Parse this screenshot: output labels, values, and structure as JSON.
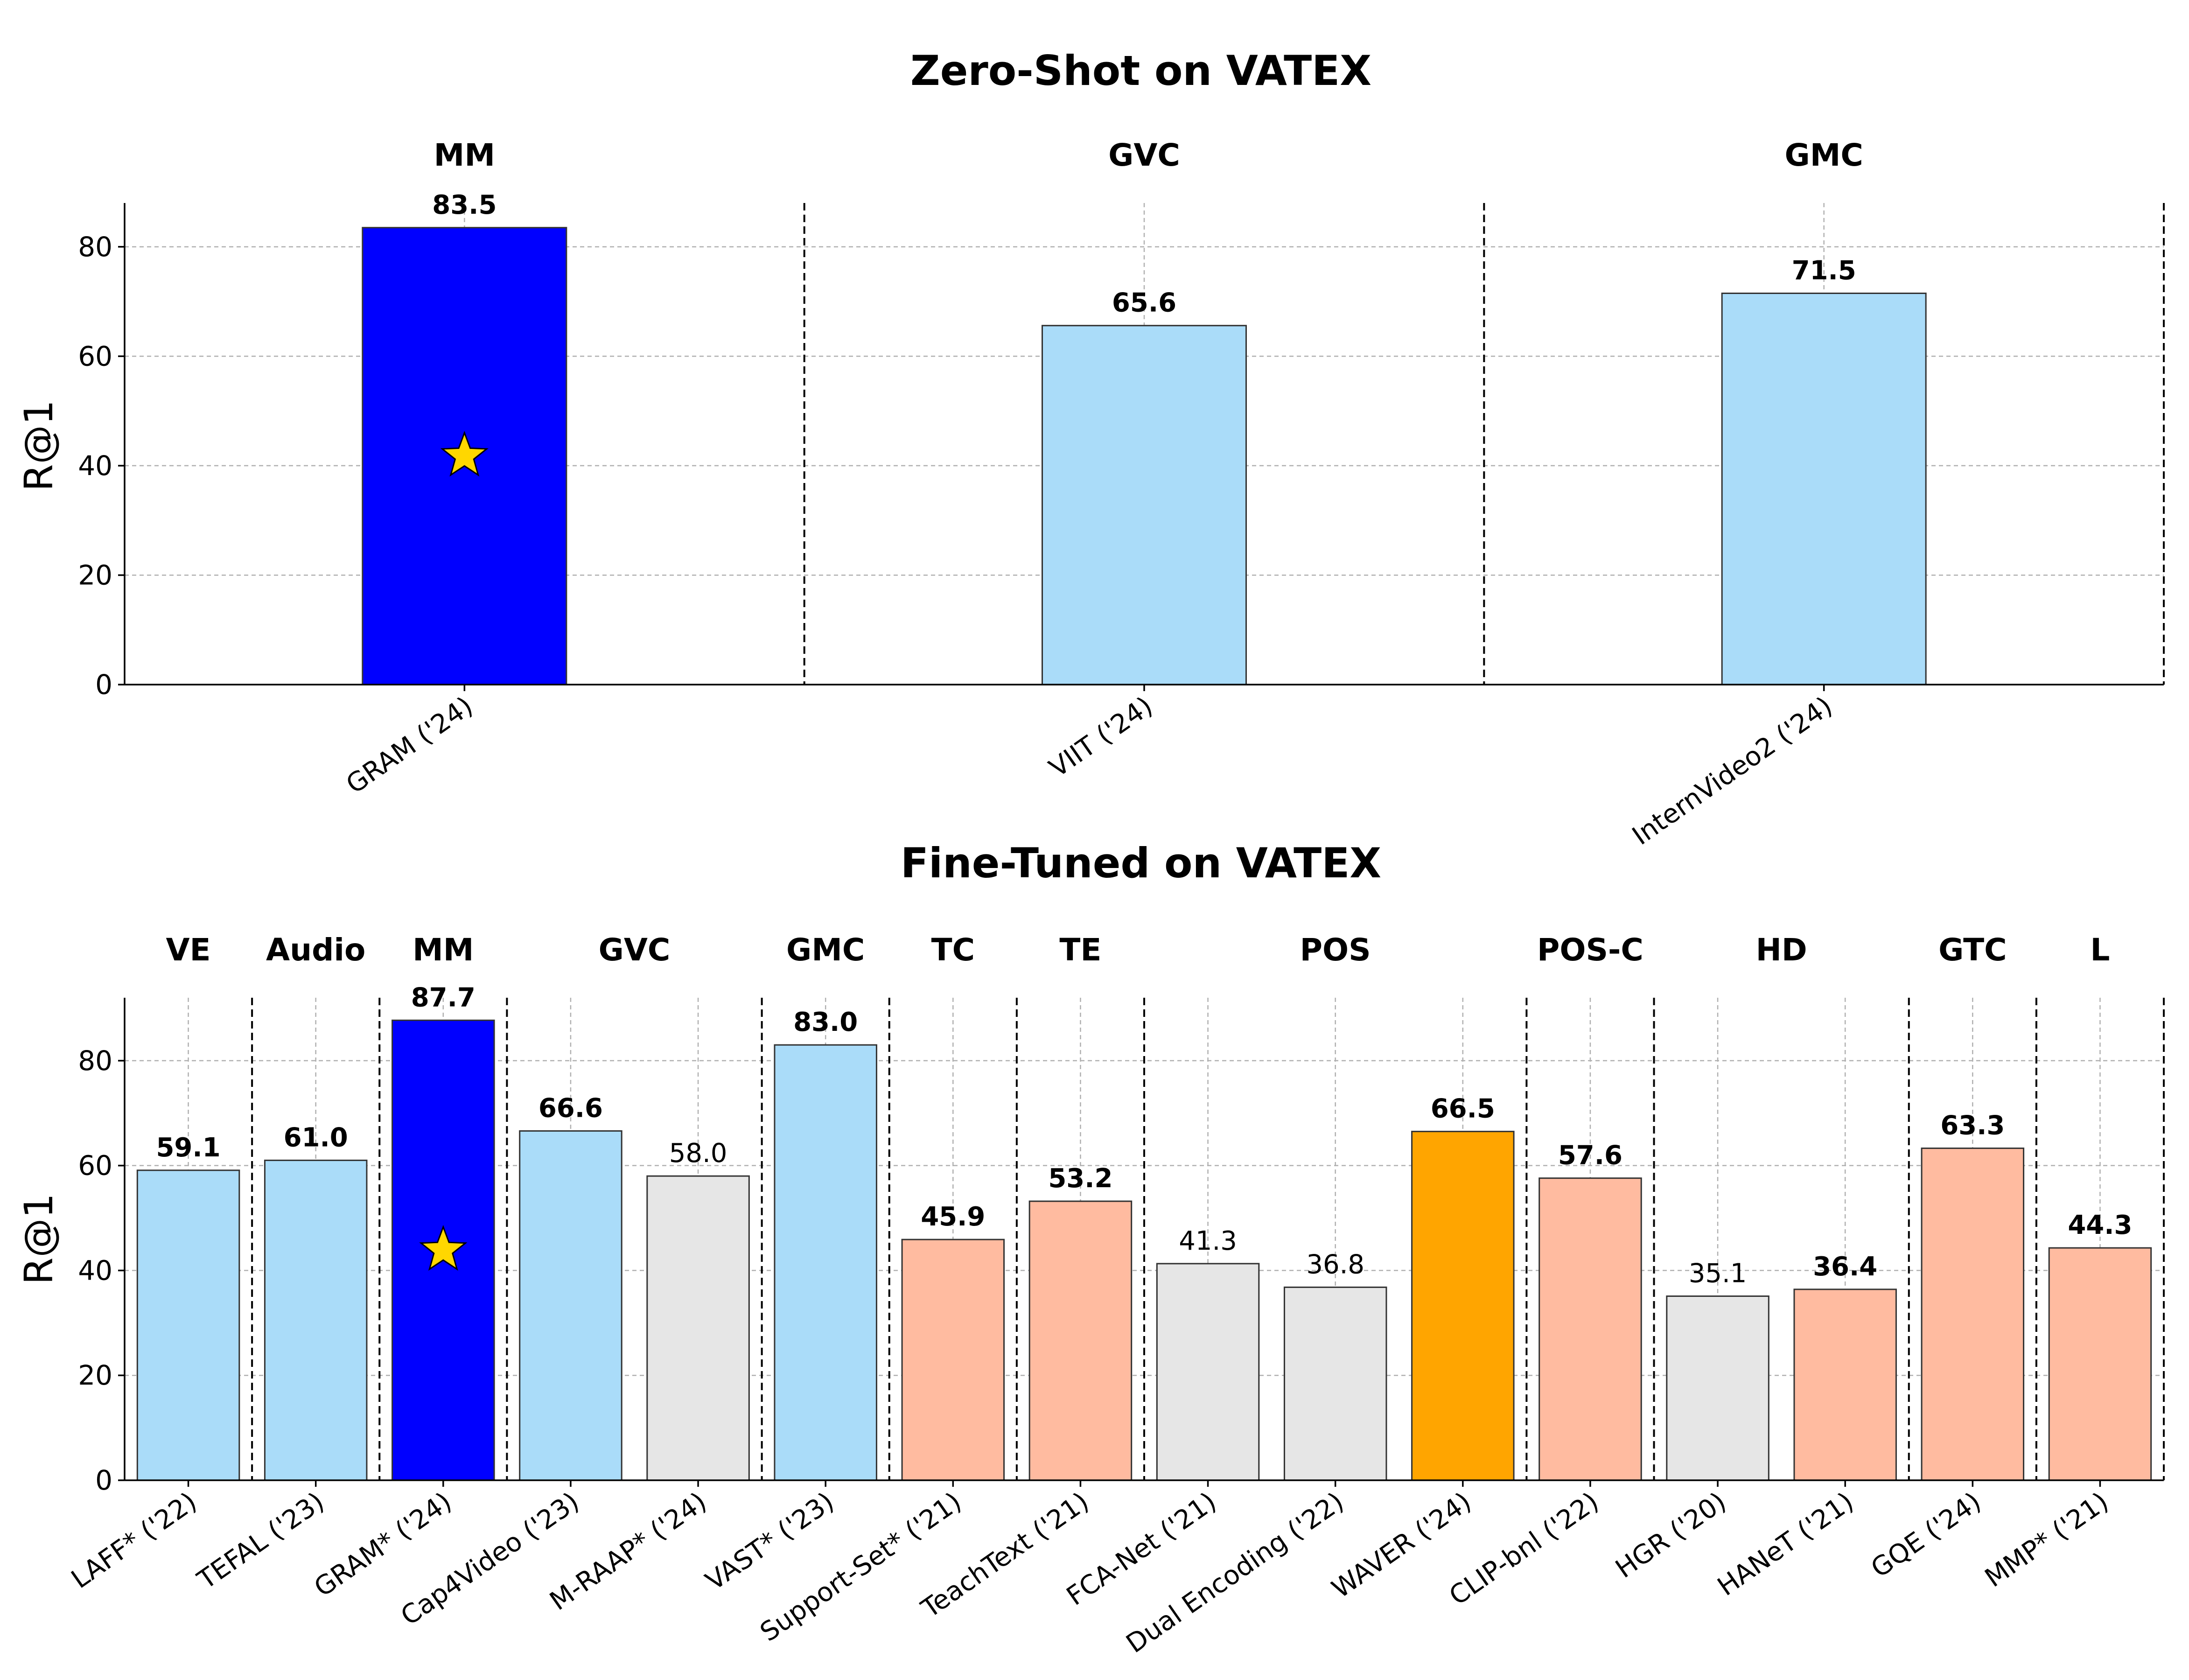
{
  "chart_data": [
    {
      "type": "bar",
      "title": "Zero-Shot on VATEX",
      "xlabel": "",
      "ylabel": "R@1",
      "ylim": [
        0,
        88
      ],
      "yticks": [
        0,
        20,
        40,
        60,
        80
      ],
      "grid": true,
      "groups": [
        {
          "label": "MM",
          "bars": [
            {
              "category": "GRAM ('24)",
              "value": 83.5,
              "color": "#0000ff",
              "bold_label": true,
              "star": true
            }
          ]
        },
        {
          "label": "GVC",
          "bars": [
            {
              "category": "VIIT ('24)",
              "value": 65.6,
              "color": "#aadcf9",
              "bold_label": true,
              "star": false
            }
          ]
        },
        {
          "label": "GMC",
          "bars": [
            {
              "category": "InternVideo2 ('24)",
              "value": 71.5,
              "color": "#aadcf9",
              "bold_label": true,
              "star": false
            }
          ]
        }
      ]
    },
    {
      "type": "bar",
      "title": "Fine-Tuned on VATEX",
      "xlabel": "",
      "ylabel": "R@1",
      "ylim": [
        0,
        92
      ],
      "yticks": [
        0,
        20,
        40,
        60,
        80
      ],
      "grid": true,
      "groups": [
        {
          "label": "VE",
          "bars": [
            {
              "category": "LAFF* ('22)",
              "value": 59.1,
              "color": "#aadcf9",
              "bold_label": true,
              "star": false
            }
          ]
        },
        {
          "label": "Audio",
          "bars": [
            {
              "category": "TEFAL ('23)",
              "value": 61.0,
              "color": "#aadcf9",
              "bold_label": true,
              "star": false
            }
          ]
        },
        {
          "label": "MM",
          "bars": [
            {
              "category": "GRAM* ('24)",
              "value": 87.7,
              "color": "#0000ff",
              "bold_label": true,
              "star": true
            }
          ]
        },
        {
          "label": "GVC",
          "bars": [
            {
              "category": "Cap4Video ('23)",
              "value": 66.6,
              "color": "#aadcf9",
              "bold_label": true,
              "star": false
            },
            {
              "category": "M-RAAP* ('24)",
              "value": 58.0,
              "color": "#e6e6e6",
              "bold_label": false,
              "star": false
            }
          ]
        },
        {
          "label": "GMC",
          "bars": [
            {
              "category": "VAST* ('23)",
              "value": 83.0,
              "color": "#aadcf9",
              "bold_label": true,
              "star": false
            }
          ]
        },
        {
          "label": "TC",
          "bars": [
            {
              "category": "Support-Set* ('21)",
              "value": 45.9,
              "color": "#ffbba0",
              "bold_label": true,
              "star": false
            }
          ]
        },
        {
          "label": "TE",
          "bars": [
            {
              "category": "TeachText ('21)",
              "value": 53.2,
              "color": "#ffbba0",
              "bold_label": true,
              "star": false
            }
          ]
        },
        {
          "label": "POS",
          "bars": [
            {
              "category": "FCA-Net ('21)",
              "value": 41.3,
              "color": "#e6e6e6",
              "bold_label": false,
              "star": false
            },
            {
              "category": "Dual Encoding ('22)",
              "value": 36.8,
              "color": "#e6e6e6",
              "bold_label": false,
              "star": false
            },
            {
              "category": "WAVER ('24)",
              "value": 66.5,
              "color": "#ffa500",
              "bold_label": true,
              "star": false
            }
          ]
        },
        {
          "label": "POS-C",
          "bars": [
            {
              "category": "CLIP-bnl ('22)",
              "value": 57.6,
              "color": "#ffbba0",
              "bold_label": true,
              "star": false
            }
          ]
        },
        {
          "label": "HD",
          "bars": [
            {
              "category": "HGR ('20)",
              "value": 35.1,
              "color": "#e6e6e6",
              "bold_label": false,
              "star": false
            },
            {
              "category": "HANeT ('21)",
              "value": 36.4,
              "color": "#ffbba0",
              "bold_label": true,
              "star": false
            }
          ]
        },
        {
          "label": "GTC",
          "bars": [
            {
              "category": "GQE ('24)",
              "value": 63.3,
              "color": "#ffbba0",
              "bold_label": true,
              "star": false
            }
          ]
        },
        {
          "label": "L",
          "bars": [
            {
              "category": "MMP* ('21)",
              "value": 44.3,
              "color": "#ffbba0",
              "bold_label": true,
              "star": false
            }
          ]
        }
      ]
    }
  ]
}
